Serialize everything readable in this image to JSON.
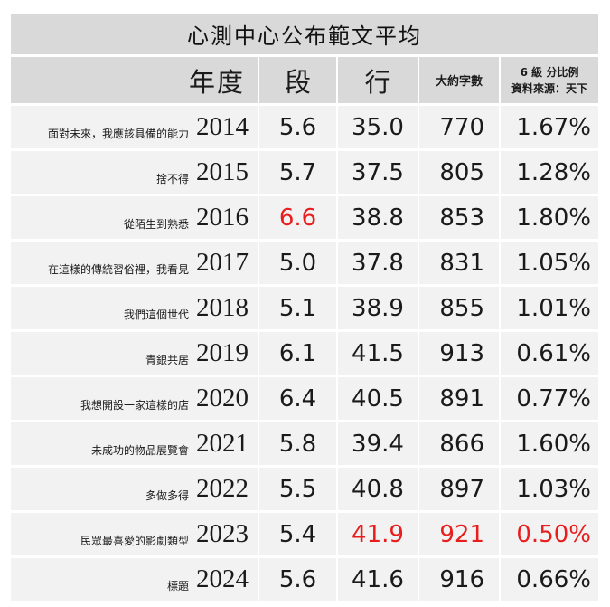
{
  "title": "心測中心公布範文平均",
  "headers": {
    "year": "年度",
    "paragraphs": "段",
    "lines": "行",
    "words": "大約字數",
    "pct_line1": "6 級 分比例",
    "pct_line2": "資料來源：天下"
  },
  "accent_color": "#e81e1e",
  "rows": [
    {
      "essay": "面對未來，我應該具備的能力",
      "year": "2014",
      "paragraphs": "5.6",
      "lines": "35.0",
      "words": "770",
      "pct": "1.67%"
    },
    {
      "essay": "捨不得",
      "year": "2015",
      "paragraphs": "5.7",
      "lines": "37.5",
      "words": "805",
      "pct": "1.28%"
    },
    {
      "essay": "從陌生到熟悉",
      "year": "2016",
      "paragraphs": "6.6",
      "lines": "38.8",
      "words": "853",
      "pct": "1.80%"
    },
    {
      "essay": "在這樣的傳統習俗裡，我看見",
      "year": "2017",
      "paragraphs": "5.0",
      "lines": "37.8",
      "words": "831",
      "pct": "1.05%"
    },
    {
      "essay": "我們這個世代",
      "year": "2018",
      "paragraphs": "5.1",
      "lines": "38.9",
      "words": "855",
      "pct": "1.01%"
    },
    {
      "essay": "青銀共居",
      "year": "2019",
      "paragraphs": "6.1",
      "lines": "41.5",
      "words": "913",
      "pct": "0.61%"
    },
    {
      "essay": "我想開設一家這樣的店",
      "year": "2020",
      "paragraphs": "6.4",
      "lines": "40.5",
      "words": "891",
      "pct": "0.77%"
    },
    {
      "essay": "未成功的物品展覽會",
      "year": "2021",
      "paragraphs": "5.8",
      "lines": "39.4",
      "words": "866",
      "pct": "1.60%"
    },
    {
      "essay": "多做多得",
      "year": "2022",
      "paragraphs": "5.5",
      "lines": "40.8",
      "words": "897",
      "pct": "1.03%"
    },
    {
      "essay": "民眾最喜愛的影劇類型",
      "year": "2023",
      "paragraphs": "5.4",
      "lines": "41.9",
      "words": "921",
      "pct": "0.50%"
    },
    {
      "essay": "標題",
      "year": "2024",
      "paragraphs": "5.6",
      "lines": "41.6",
      "words": "916",
      "pct": "0.66%"
    }
  ],
  "highlights": [
    {
      "row": 2,
      "col": "paragraphs"
    },
    {
      "row": 9,
      "col": "lines"
    },
    {
      "row": 9,
      "col": "words"
    },
    {
      "row": 9,
      "col": "pct"
    }
  ]
}
